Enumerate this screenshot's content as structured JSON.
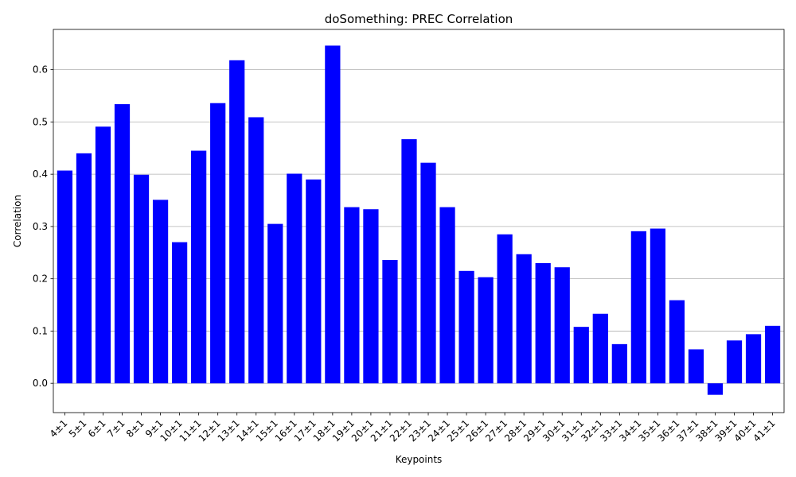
{
  "colors": {
    "bar": "#0000ff",
    "grid": "#b0b0b0",
    "axis": "#000000",
    "background": "#ffffff"
  },
  "chart_data": {
    "type": "bar",
    "title": "doSomething: PREC Correlation",
    "xlabel": "Keypoints",
    "ylabel": "Correlation",
    "categories": [
      "4±1",
      "5±1",
      "6±1",
      "7±1",
      "8±1",
      "9±1",
      "10±1",
      "11±1",
      "12±1",
      "13±1",
      "14±1",
      "15±1",
      "16±1",
      "17±1",
      "18±1",
      "19±1",
      "20±1",
      "21±1",
      "22±1",
      "23±1",
      "24±1",
      "25±1",
      "26±1",
      "27±1",
      "28±1",
      "29±1",
      "30±1",
      "31±1",
      "32±1",
      "33±1",
      "34±1",
      "35±1",
      "36±1",
      "37±1",
      "38±1",
      "39±1",
      "40±1",
      "41±1"
    ],
    "values": [
      0.407,
      0.44,
      0.491,
      0.534,
      0.399,
      0.351,
      0.27,
      0.445,
      0.536,
      0.618,
      0.509,
      0.305,
      0.401,
      0.39,
      0.646,
      0.337,
      0.333,
      0.236,
      0.467,
      0.422,
      0.337,
      0.215,
      0.203,
      0.285,
      0.247,
      0.23,
      0.222,
      0.108,
      0.133,
      0.075,
      0.291,
      0.296,
      0.159,
      0.065,
      -0.022,
      0.082,
      0.094,
      0.11
    ],
    "ylim": [
      -0.056,
      0.677
    ],
    "yticks": [
      "0.0",
      "0.1",
      "0.2",
      "0.3",
      "0.4",
      "0.5",
      "0.6"
    ],
    "ytick_values": [
      0.0,
      0.1,
      0.2,
      0.3,
      0.4,
      0.5,
      0.6
    ],
    "grid": "y-major",
    "legend": "none"
  }
}
